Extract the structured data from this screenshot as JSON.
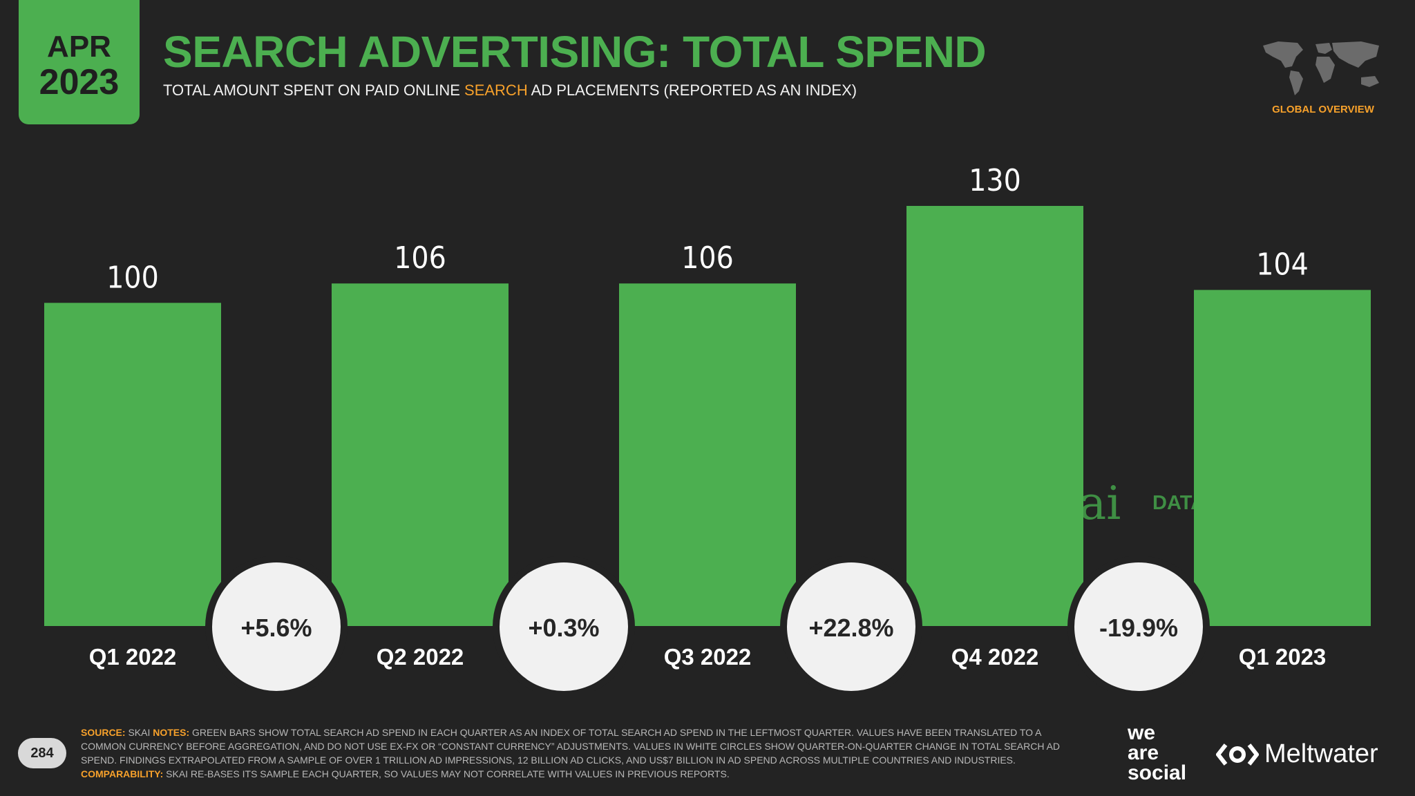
{
  "header": {
    "month": "APR",
    "year": "2023",
    "title": "SEARCH ADVERTISING: TOTAL SPEND",
    "subtitle_before": "TOTAL AMOUNT SPENT ON PAID ONLINE ",
    "subtitle_highlight": "SEARCH",
    "subtitle_after": " AD PLACEMENTS (REPORTED AS AN INDEX)",
    "region": "GLOBAL OVERVIEW"
  },
  "chart_data": {
    "type": "bar",
    "categories": [
      "Q1 2022",
      "Q2 2022",
      "Q3 2022",
      "Q4 2022",
      "Q1 2023"
    ],
    "values": [
      100,
      106,
      106,
      130,
      104
    ],
    "changes": [
      "+5.6%",
      "+0.3%",
      "+22.8%",
      "-19.9%"
    ],
    "ylim": [
      0,
      130
    ],
    "title": "SEARCH ADVERTISING: TOTAL SPEND"
  },
  "watermarks": {
    "skai": "skai",
    "datareportal": "DATAREPORTAL"
  },
  "footer": {
    "source_label": "SOURCE:",
    "source": "SKAI",
    "notes_label": "NOTES:",
    "notes": "GREEN BARS SHOW TOTAL SEARCH AD SPEND IN EACH QUARTER AS AN INDEX OF TOTAL SEARCH AD SPEND IN THE LEFTMOST QUARTER. VALUES HAVE BEEN TRANSLATED TO A COMMON CURRENCY BEFORE AGGREGATION, AND DO NOT USE EX-FX OR “CONSTANT CURRENCY” ADJUSTMENTS. VALUES IN WHITE CIRCLES SHOW QUARTER-ON-QUARTER CHANGE IN TOTAL SEARCH AD SPEND. FINDINGS EXTRAPOLATED FROM A SAMPLE OF OVER 1 TRILLION AD IMPRESSIONS, 12 BILLION AD CLICKS, AND US$7 BILLION IN AD SPEND ACROSS MULTIPLE COUNTRIES AND INDUSTRIES.",
    "comparability_label": "COMPARABILITY:",
    "comparability": "SKAI RE-BASES ITS SAMPLE EACH QUARTER, SO VALUES MAY NOT CORRELATE WITH VALUES IN PREVIOUS REPORTS.",
    "page_number": "284"
  },
  "brands": {
    "we_are_social": [
      "we",
      "are",
      "social"
    ],
    "meltwater": "Meltwater"
  },
  "colors": {
    "bar": "#4caf50",
    "background": "#232323",
    "accent": "#f7a12b",
    "bubble": "#f1f1f1"
  }
}
